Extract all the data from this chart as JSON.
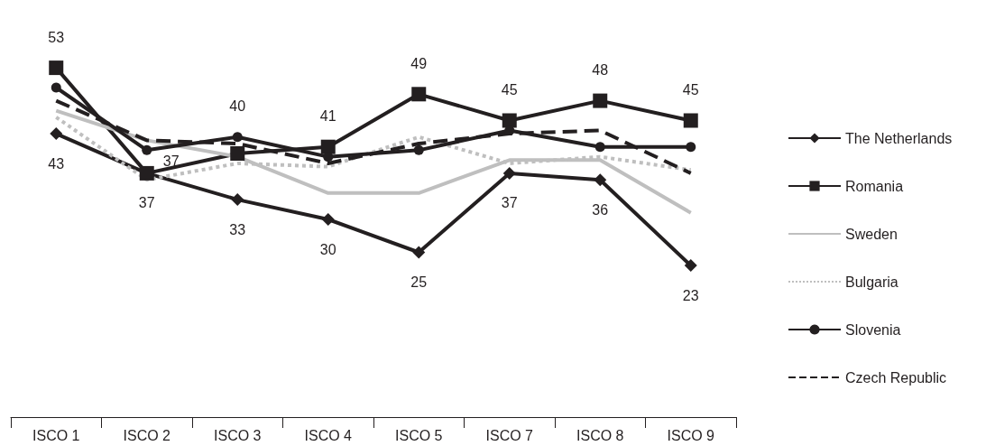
{
  "chart_data": {
    "type": "line",
    "categories": [
      "ISCO 1",
      "ISCO 2",
      "ISCO 3",
      "ISCO 4",
      "ISCO 5",
      "ISCO 7",
      "ISCO 8",
      "ISCO 9"
    ],
    "legend": "right",
    "grid": false,
    "series": [
      {
        "name": "The Netherlands",
        "color": "#231f20",
        "marker": "diamond",
        "line_style": "solid",
        "values": [
          43,
          37,
          33,
          30,
          25,
          37,
          36,
          23
        ],
        "value_labels": [
          "43",
          "37",
          "33",
          "30",
          "25",
          "37",
          "36",
          "23"
        ]
      },
      {
        "name": "Romania",
        "color": "#231f20",
        "marker": "square",
        "line_style": "solid",
        "values": [
          53,
          37,
          40,
          41,
          49,
          45,
          48,
          45
        ],
        "value_labels": [
          "53",
          "37",
          "40",
          "41",
          "49",
          "45",
          "48",
          "45"
        ]
      },
      {
        "name": "Sweden",
        "color": "#bfbfbf",
        "marker": "none",
        "line_style": "solid",
        "values": [
          46.5,
          42,
          39.5,
          34,
          34,
          39,
          39,
          31
        ]
      },
      {
        "name": "Bulgaria",
        "color": "#bfbfbf",
        "marker": "none",
        "line_style": "dotted",
        "values": [
          45.5,
          36,
          38.5,
          38,
          42.5,
          38.5,
          39.5,
          37.5
        ]
      },
      {
        "name": "Slovenia",
        "color": "#231f20",
        "marker": "circle",
        "line_style": "solid",
        "values": [
          50,
          40.5,
          42.5,
          39.5,
          40.5,
          43.5,
          41,
          41
        ]
      },
      {
        "name": "Czech Republic",
        "color": "#231f20",
        "marker": "none",
        "line_style": "dashed",
        "values": [
          48,
          42,
          41.5,
          38.5,
          41.5,
          43,
          43.5,
          37
        ]
      }
    ]
  }
}
